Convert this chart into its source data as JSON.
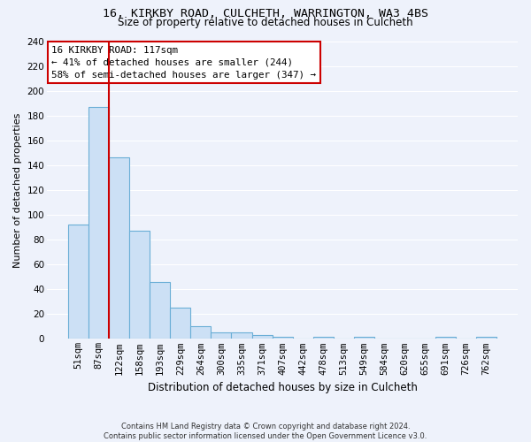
{
  "title_line1": "16, KIRKBY ROAD, CULCHETH, WARRINGTON, WA3 4BS",
  "title_line2": "Size of property relative to detached houses in Culcheth",
  "xlabel": "Distribution of detached houses by size in Culcheth",
  "ylabel": "Number of detached properties",
  "footnote": "Contains HM Land Registry data © Crown copyright and database right 2024.\nContains public sector information licensed under the Open Government Licence v3.0.",
  "bin_labels": [
    "51sqm",
    "87sqm",
    "122sqm",
    "158sqm",
    "193sqm",
    "229sqm",
    "264sqm",
    "300sqm",
    "335sqm",
    "371sqm",
    "407sqm",
    "442sqm",
    "478sqm",
    "513sqm",
    "549sqm",
    "584sqm",
    "620sqm",
    "655sqm",
    "691sqm",
    "726sqm",
    "762sqm"
  ],
  "bar_values": [
    92,
    187,
    146,
    87,
    46,
    25,
    10,
    5,
    5,
    3,
    2,
    0,
    2,
    0,
    2,
    0,
    0,
    0,
    2,
    0,
    2
  ],
  "bar_color": "#cce0f5",
  "bar_edge_color": "#6aaed6",
  "property_line_x": 1.5,
  "property_line_color": "#cc0000",
  "annotation_text": "16 KIRKBY ROAD: 117sqm\n← 41% of detached houses are smaller (244)\n58% of semi-detached houses are larger (347) →",
  "ylim": [
    0,
    240
  ],
  "yticks": [
    0,
    20,
    40,
    60,
    80,
    100,
    120,
    140,
    160,
    180,
    200,
    220,
    240
  ],
  "background_color": "#eef2fb",
  "grid_color": "#ffffff",
  "title1_fontsize": 9.5,
  "title2_fontsize": 8.5,
  "annotation_fontsize": 7.8,
  "ylabel_fontsize": 8,
  "xlabel_fontsize": 8.5,
  "footnote_fontsize": 6.0
}
